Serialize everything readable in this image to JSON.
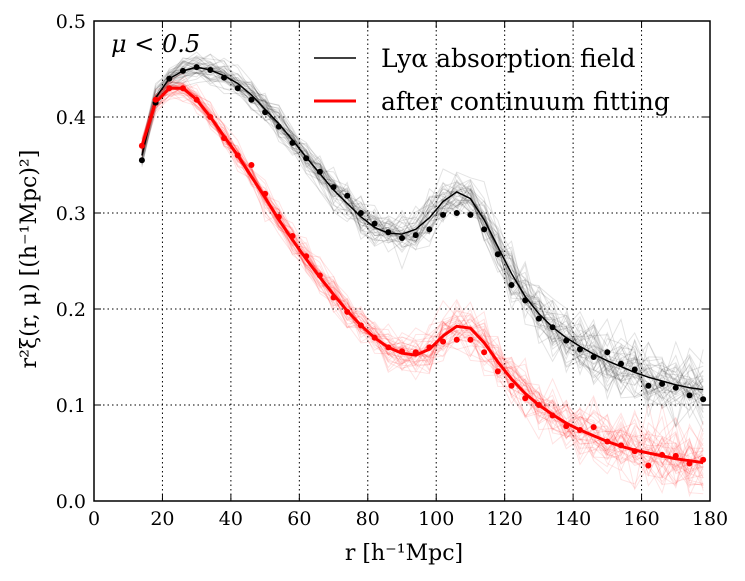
{
  "chart_data": {
    "type": "line",
    "title": "",
    "annotation": "μ < 0.5",
    "xlabel": "r [h⁻¹Mpc]",
    "ylabel": "r²ξ(r, μ) [(h⁻¹Mpc)²]",
    "xlim": [
      0,
      180
    ],
    "ylim": [
      0.0,
      0.5
    ],
    "xticks": [
      0,
      20,
      40,
      60,
      80,
      100,
      120,
      140,
      160,
      180
    ],
    "yticks": [
      0.0,
      0.1,
      0.2,
      0.3,
      0.4,
      0.5
    ],
    "grid": true,
    "legend_position": "top-right",
    "colors": {
      "black": "#000000",
      "red": "#ff0000"
    },
    "series": [
      {
        "name": "Lyα absorption field",
        "color": "#000000",
        "style": "thin-line",
        "x": [
          14,
          18,
          22,
          26,
          30,
          34,
          38,
          42,
          46,
          50,
          54,
          58,
          62,
          66,
          70,
          74,
          78,
          82,
          86,
          90,
          94,
          98,
          102,
          106,
          110,
          114,
          118,
          122,
          126,
          130,
          134,
          138,
          142,
          146,
          150,
          154,
          158,
          162,
          166,
          170,
          174,
          178
        ],
        "values": [
          0.36,
          0.42,
          0.44,
          0.448,
          0.452,
          0.449,
          0.443,
          0.435,
          0.423,
          0.408,
          0.393,
          0.376,
          0.358,
          0.341,
          0.324,
          0.31,
          0.296,
          0.285,
          0.279,
          0.278,
          0.283,
          0.295,
          0.312,
          0.322,
          0.315,
          0.293,
          0.265,
          0.237,
          0.213,
          0.195,
          0.181,
          0.17,
          0.161,
          0.153,
          0.146,
          0.14,
          0.134,
          0.129,
          0.125,
          0.121,
          0.118,
          0.116
        ]
      },
      {
        "name": "after continuum fitting",
        "color": "#ff0000",
        "style": "thick-line",
        "x": [
          14,
          18,
          22,
          26,
          30,
          34,
          38,
          42,
          46,
          50,
          54,
          58,
          62,
          66,
          70,
          74,
          78,
          82,
          86,
          90,
          94,
          98,
          102,
          106,
          110,
          114,
          118,
          122,
          126,
          130,
          134,
          138,
          142,
          146,
          150,
          154,
          158,
          162,
          166,
          170,
          174,
          178
        ],
        "values": [
          0.37,
          0.415,
          0.43,
          0.43,
          0.418,
          0.4,
          0.38,
          0.36,
          0.338,
          0.316,
          0.293,
          0.272,
          0.252,
          0.233,
          0.215,
          0.198,
          0.183,
          0.17,
          0.16,
          0.154,
          0.152,
          0.158,
          0.172,
          0.182,
          0.18,
          0.165,
          0.145,
          0.127,
          0.112,
          0.1,
          0.09,
          0.081,
          0.074,
          0.068,
          0.062,
          0.057,
          0.053,
          0.05,
          0.047,
          0.044,
          0.042,
          0.04
        ]
      },
      {
        "name": "Lyα absorption field (data points)",
        "color": "#000000",
        "style": "dots",
        "x": [
          14,
          18,
          22,
          26,
          30,
          34,
          38,
          42,
          46,
          50,
          54,
          58,
          62,
          66,
          70,
          74,
          78,
          82,
          86,
          90,
          94,
          98,
          102,
          106,
          110,
          114,
          118,
          122,
          126,
          130,
          134,
          138,
          142,
          146,
          150,
          154,
          158,
          162,
          166,
          170,
          174,
          178
        ],
        "values": [
          0.355,
          0.415,
          0.44,
          0.448,
          0.452,
          0.449,
          0.441,
          0.43,
          0.418,
          0.405,
          0.39,
          0.373,
          0.357,
          0.343,
          0.327,
          0.318,
          0.3,
          0.289,
          0.28,
          0.274,
          0.277,
          0.283,
          0.298,
          0.3,
          0.298,
          0.283,
          0.257,
          0.225,
          0.209,
          0.19,
          0.181,
          0.167,
          0.158,
          0.15,
          0.155,
          0.143,
          0.137,
          0.12,
          0.122,
          0.118,
          0.11,
          0.106
        ]
      },
      {
        "name": "after continuum fitting (data points)",
        "color": "#ff0000",
        "style": "dots",
        "x": [
          14,
          18,
          22,
          26,
          30,
          34,
          38,
          42,
          46,
          50,
          54,
          58,
          62,
          66,
          70,
          74,
          78,
          82,
          86,
          90,
          94,
          98,
          102,
          106,
          110,
          114,
          118,
          122,
          126,
          130,
          134,
          138,
          142,
          146,
          150,
          154,
          158,
          162,
          166,
          170,
          174,
          178
        ],
        "values": [
          0.37,
          0.418,
          0.43,
          0.43,
          0.418,
          0.4,
          0.378,
          0.36,
          0.35,
          0.32,
          0.296,
          0.276,
          0.255,
          0.235,
          0.212,
          0.197,
          0.183,
          0.17,
          0.16,
          0.156,
          0.155,
          0.16,
          0.166,
          0.168,
          0.168,
          0.155,
          0.135,
          0.12,
          0.107,
          0.1,
          0.089,
          0.078,
          0.074,
          0.077,
          0.062,
          0.058,
          0.052,
          0.037,
          0.048,
          0.047,
          0.039,
          0.043
        ]
      }
    ],
    "mock_realizations": {
      "count_per_series": 40,
      "description_colors": [
        "#000000",
        "#ff0000"
      ]
    }
  }
}
